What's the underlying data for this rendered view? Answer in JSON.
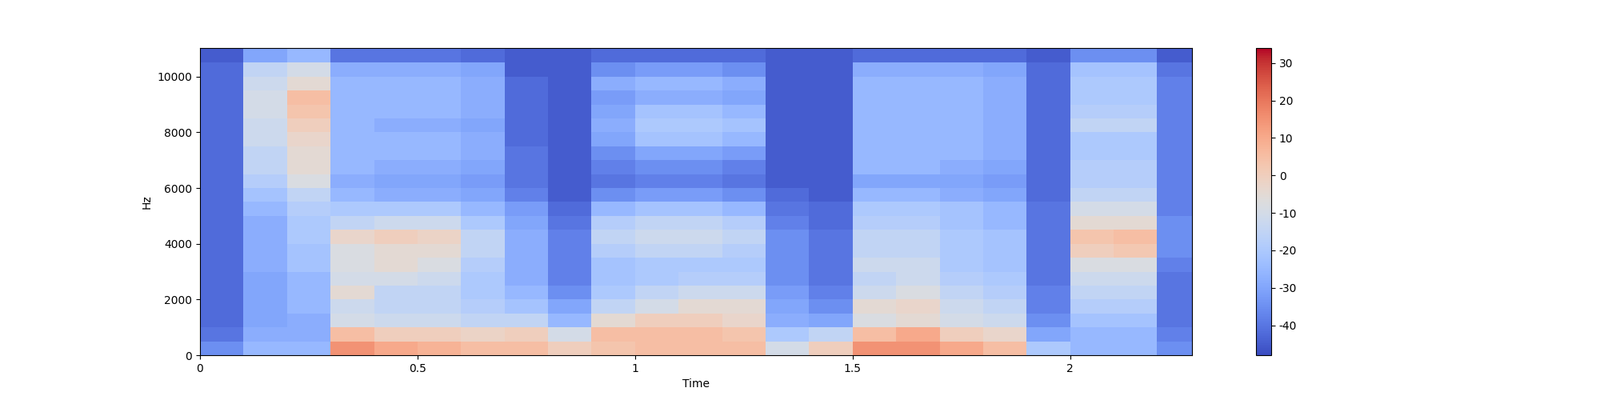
{
  "chart_data": {
    "type": "heatmap",
    "x_label": "Time",
    "y_label": "Hz",
    "color": "coolwarm",
    "xlim": [
      0,
      2.28
    ],
    "xticks": [
      0,
      0.5,
      1,
      1.5,
      2
    ],
    "ylim": [
      0,
      11025
    ],
    "yticks": [
      0,
      2000,
      4000,
      6000,
      8000,
      10000
    ],
    "x_edges": [
      0,
      0.1,
      0.2,
      0.3,
      0.4,
      0.5,
      0.6,
      0.7,
      0.8,
      0.9,
      1.0,
      1.1,
      1.2,
      1.3,
      1.4,
      1.5,
      1.6,
      1.7,
      1.8,
      1.9,
      2.0,
      2.1,
      2.2,
      2.28
    ],
    "y_edges": [
      0,
      500,
      1000,
      1500,
      2000,
      2500,
      3000,
      3500,
      4000,
      4500,
      5000,
      5500,
      6000,
      6500,
      7000,
      7500,
      8000,
      8500,
      9000,
      9500,
      10000,
      10500,
      11025
    ],
    "cells": [
      [
        -35,
        -25,
        -25,
        15,
        10,
        8,
        5,
        5,
        0,
        3,
        5,
        5,
        5,
        -10,
        0,
        15,
        15,
        10,
        5,
        -20,
        -25,
        -25,
        -35
      ],
      [
        -40,
        -28,
        -28,
        5,
        0,
        0,
        -2,
        0,
        -10,
        5,
        5,
        5,
        3,
        -20,
        -15,
        5,
        10,
        0,
        -3,
        -30,
        -25,
        -25,
        -38
      ],
      [
        -42,
        -30,
        -28,
        -10,
        -12,
        -12,
        -15,
        -15,
        -25,
        -5,
        0,
        0,
        -3,
        -28,
        -30,
        -8,
        -5,
        -10,
        -12,
        -35,
        -22,
        -22,
        -40
      ],
      [
        -42,
        -30,
        -25,
        -12,
        -15,
        -15,
        -18,
        -22,
        -30,
        -15,
        -10,
        -5,
        -5,
        -30,
        -35,
        -5,
        -3,
        -12,
        -15,
        -38,
        -18,
        -18,
        -40
      ],
      [
        -42,
        -30,
        -25,
        -5,
        -15,
        -15,
        -20,
        -25,
        -35,
        -20,
        -15,
        -12,
        -12,
        -32,
        -38,
        -12,
        -8,
        -15,
        -18,
        -38,
        -15,
        -15,
        -40
      ],
      [
        -42,
        -30,
        -25,
        -10,
        -10,
        -12,
        -20,
        -28,
        -38,
        -22,
        -20,
        -18,
        -18,
        -35,
        -40,
        -15,
        -12,
        -18,
        -20,
        -40,
        -12,
        -12,
        -40
      ],
      [
        -42,
        -28,
        -22,
        -8,
        -5,
        -8,
        -18,
        -28,
        -38,
        -22,
        -20,
        -20,
        -20,
        -35,
        -40,
        -12,
        -12,
        -20,
        -22,
        -40,
        -8,
        -8,
        -38
      ],
      [
        -42,
        -28,
        -22,
        -8,
        -5,
        -5,
        -15,
        -28,
        -38,
        -18,
        -15,
        -15,
        -18,
        -35,
        -40,
        -15,
        -15,
        -20,
        -22,
        -40,
        0,
        2,
        -35
      ],
      [
        -42,
        -28,
        -20,
        -3,
        0,
        -2,
        -15,
        -28,
        -38,
        -15,
        -12,
        -12,
        -15,
        -35,
        -40,
        -15,
        -15,
        -20,
        -22,
        -40,
        3,
        5,
        -35
      ],
      [
        -42,
        -28,
        -20,
        -15,
        -12,
        -12,
        -20,
        -30,
        -40,
        -18,
        -15,
        -15,
        -18,
        -38,
        -42,
        -18,
        -18,
        -22,
        -25,
        -40,
        -5,
        -5,
        -35
      ],
      [
        -42,
        -25,
        -18,
        -20,
        -20,
        -20,
        -25,
        -32,
        -42,
        -25,
        -22,
        -22,
        -25,
        -40,
        -42,
        -20,
        -20,
        -22,
        -25,
        -40,
        -10,
        -10,
        -38
      ],
      [
        -42,
        -22,
        -15,
        -25,
        -28,
        -28,
        -30,
        -38,
        -45,
        -35,
        -32,
        -32,
        -35,
        -42,
        -45,
        -25,
        -25,
        -28,
        -30,
        -42,
        -15,
        -15,
        -38
      ],
      [
        -42,
        -18,
        -8,
        -28,
        -30,
        -30,
        -32,
        -40,
        -45,
        -40,
        -38,
        -38,
        -40,
        -45,
        -45,
        -30,
        -30,
        -30,
        -32,
        -42,
        -18,
        -18,
        -38
      ],
      [
        -42,
        -15,
        -5,
        -25,
        -28,
        -28,
        -30,
        -40,
        -45,
        -38,
        -35,
        -35,
        -38,
        -45,
        -45,
        -25,
        -25,
        -28,
        -30,
        -42,
        -18,
        -18,
        -38
      ],
      [
        -42,
        -15,
        -5,
        -25,
        -25,
        -25,
        -28,
        -40,
        -45,
        -35,
        -30,
        -30,
        -32,
        -45,
        -45,
        -25,
        -25,
        -25,
        -28,
        -42,
        -20,
        -20,
        -38
      ],
      [
        -42,
        -12,
        -3,
        -25,
        -25,
        -25,
        -28,
        -42,
        -45,
        -30,
        -22,
        -22,
        -25,
        -45,
        -45,
        -25,
        -25,
        -25,
        -28,
        -42,
        -20,
        -20,
        -38
      ],
      [
        -42,
        -12,
        0,
        -25,
        -28,
        -28,
        -30,
        -42,
        -45,
        -28,
        -20,
        -20,
        -22,
        -45,
        -45,
        -25,
        -25,
        -25,
        -28,
        -42,
        -15,
        -15,
        -38
      ],
      [
        -42,
        -10,
        3,
        -25,
        -25,
        -25,
        -28,
        -42,
        -45,
        -30,
        -22,
        -22,
        -25,
        -45,
        -45,
        -25,
        -25,
        -25,
        -28,
        -42,
        -18,
        -18,
        -38
      ],
      [
        -42,
        -10,
        5,
        -25,
        -25,
        -25,
        -28,
        -42,
        -45,
        -32,
        -28,
        -28,
        -30,
        -45,
        -45,
        -25,
        -25,
        -25,
        -28,
        -42,
        -20,
        -20,
        -38
      ],
      [
        -42,
        -12,
        -5,
        -25,
        -25,
        -25,
        -28,
        -42,
        -45,
        -28,
        -25,
        -25,
        -28,
        -45,
        -45,
        -25,
        -25,
        -25,
        -28,
        -42,
        -20,
        -20,
        -38
      ],
      [
        -42,
        -15,
        -10,
        -28,
        -28,
        -28,
        -30,
        -45,
        -45,
        -35,
        -32,
        -32,
        -35,
        -45,
        -45,
        -28,
        -28,
        -28,
        -30,
        -42,
        -22,
        -22,
        -40
      ],
      [
        -45,
        -30,
        -25,
        -40,
        -40,
        -40,
        -42,
        -45,
        -45,
        -42,
        -42,
        -42,
        -42,
        -45,
        -45,
        -42,
        -42,
        -42,
        -42,
        -45,
        -35,
        -35,
        -45
      ]
    ],
    "colorbar": {
      "range": [
        -48,
        34
      ],
      "ticks": [
        -40,
        -30,
        -20,
        -10,
        0,
        10,
        20,
        30
      ]
    }
  }
}
